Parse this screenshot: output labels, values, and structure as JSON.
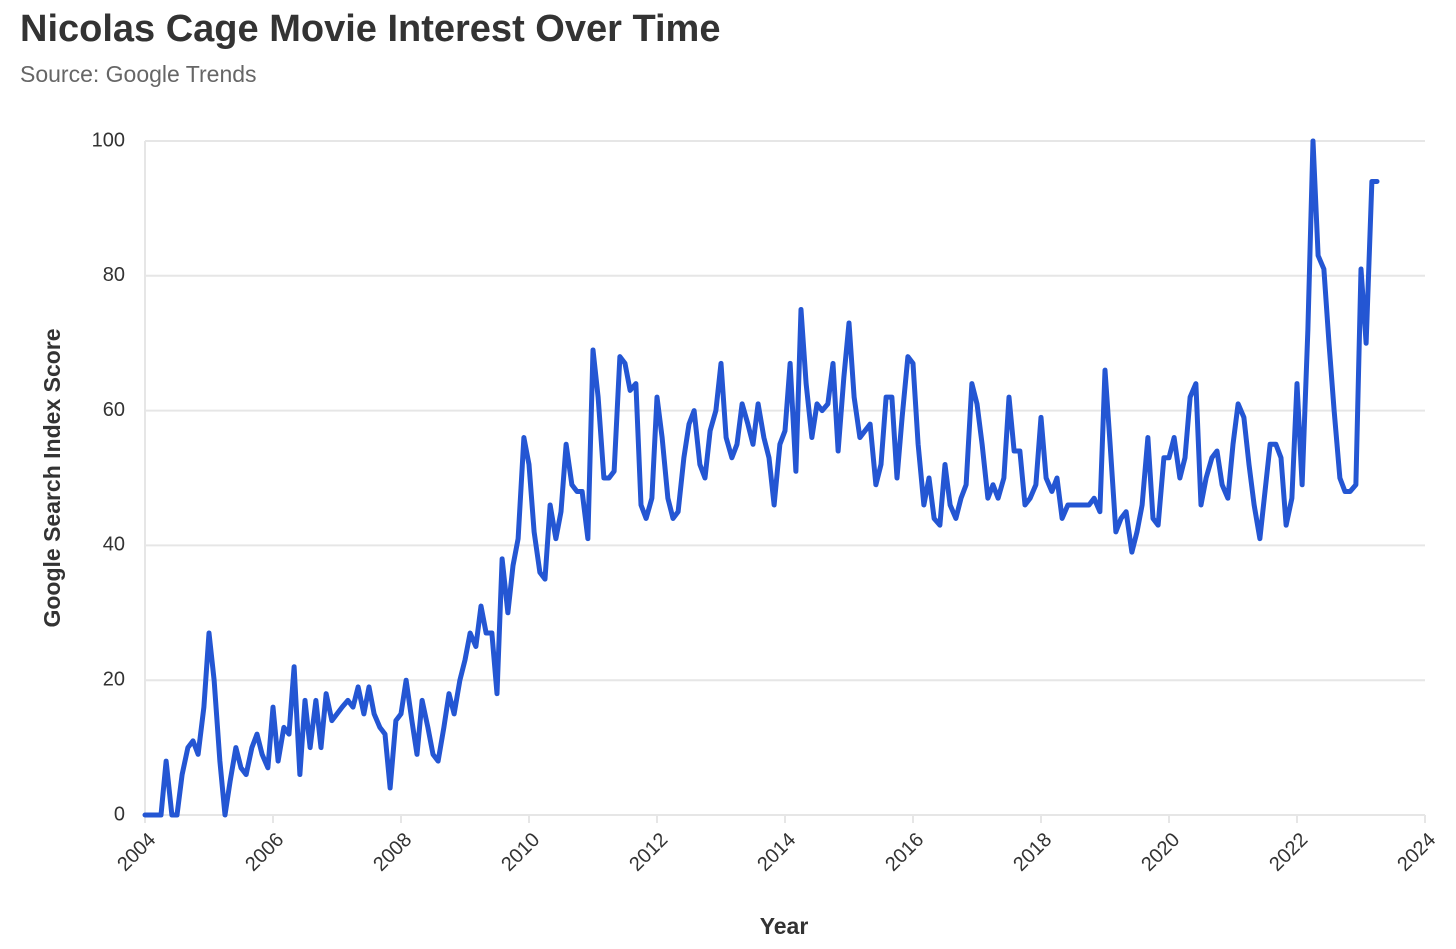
{
  "chart_data": {
    "type": "line",
    "title": "Nicolas Cage Movie Interest Over Time",
    "subtitle": "Source: Google Trends",
    "x_label": "Year",
    "y_label": "Google Search Index Score",
    "xlim": [
      2004,
      2024
    ],
    "xticks": [
      2004,
      2006,
      2008,
      2010,
      2012,
      2014,
      2016,
      2018,
      2020,
      2022,
      2024
    ],
    "ylim": [
      0,
      100
    ],
    "yticks": [
      0,
      20,
      40,
      60,
      80,
      100
    ],
    "grid": true,
    "x": [
      2004,
      2004.08,
      2004.17,
      2004.25,
      2004.33,
      2004.42,
      2004.5,
      2004.58,
      2004.67,
      2004.75,
      2004.83,
      2004.92,
      2005,
      2005.08,
      2005.17,
      2005.25,
      2005.33,
      2005.42,
      2005.5,
      2005.58,
      2005.67,
      2005.75,
      2005.83,
      2005.92,
      2006,
      2006.08,
      2006.17,
      2006.25,
      2006.33,
      2006.42,
      2006.5,
      2006.58,
      2006.67,
      2006.75,
      2006.83,
      2006.92,
      2007,
      2007.08,
      2007.17,
      2007.25,
      2007.33,
      2007.42,
      2007.5,
      2007.58,
      2007.67,
      2007.75,
      2007.83,
      2007.92,
      2008,
      2008.08,
      2008.17,
      2008.25,
      2008.33,
      2008.42,
      2008.5,
      2008.58,
      2008.67,
      2008.75,
      2008.83,
      2008.92,
      2009,
      2009.08,
      2009.17,
      2009.25,
      2009.33,
      2009.42,
      2009.5,
      2009.58,
      2009.67,
      2009.75,
      2009.83,
      2009.92,
      2010,
      2010.08,
      2010.17,
      2010.25,
      2010.33,
      2010.42,
      2010.5,
      2010.58,
      2010.67,
      2010.75,
      2010.83,
      2010.92,
      2011,
      2011.08,
      2011.17,
      2011.25,
      2011.33,
      2011.42,
      2011.5,
      2011.58,
      2011.67,
      2011.75,
      2011.83,
      2011.92,
      2012,
      2012.08,
      2012.17,
      2012.25,
      2012.33,
      2012.42,
      2012.5,
      2012.58,
      2012.67,
      2012.75,
      2012.83,
      2012.92,
      2013,
      2013.08,
      2013.17,
      2013.25,
      2013.33,
      2013.42,
      2013.5,
      2013.58,
      2013.67,
      2013.75,
      2013.83,
      2013.92,
      2014,
      2014.08,
      2014.17,
      2014.25,
      2014.33,
      2014.42,
      2014.5,
      2014.58,
      2014.67,
      2014.75,
      2014.83,
      2014.92,
      2015,
      2015.08,
      2015.17,
      2015.25,
      2015.33,
      2015.42,
      2015.5,
      2015.58,
      2015.67,
      2015.75,
      2015.83,
      2015.92,
      2016,
      2016.08,
      2016.17,
      2016.25,
      2016.33,
      2016.42,
      2016.5,
      2016.58,
      2016.67,
      2016.75,
      2016.83,
      2016.92,
      2017,
      2017.08,
      2017.17,
      2017.25,
      2017.33,
      2017.42,
      2017.5,
      2017.58,
      2017.67,
      2017.75,
      2017.83,
      2017.92,
      2018,
      2018.08,
      2018.17,
      2018.25,
      2018.33,
      2018.42,
      2018.5,
      2018.58,
      2018.67,
      2018.75,
      2018.83,
      2018.92,
      2019,
      2019.08,
      2019.17,
      2019.25,
      2019.33,
      2019.42,
      2019.5,
      2019.58,
      2019.67,
      2019.75,
      2019.83,
      2019.92,
      2020,
      2020.08,
      2020.17,
      2020.25,
      2020.33,
      2020.42,
      2020.5,
      2020.58,
      2020.67,
      2020.75,
      2020.83,
      2020.92,
      2021,
      2021.08,
      2021.17,
      2021.25,
      2021.33,
      2021.42,
      2021.5,
      2021.58,
      2021.67,
      2021.75,
      2021.83,
      2021.92,
      2022,
      2022.08,
      2022.17,
      2022.25,
      2022.33,
      2022.42,
      2022.5,
      2022.58,
      2022.67,
      2022.75,
      2022.83,
      2022.92,
      2023,
      2023.08,
      2023.17,
      2023.25
    ],
    "series": [
      {
        "name": "Nicolas Cage",
        "color": "#2456d3",
        "values": [
          0,
          0,
          0,
          0,
          8,
          0,
          0,
          6,
          10,
          11,
          9,
          16,
          27,
          20,
          8,
          0,
          5,
          10,
          7,
          6,
          10,
          12,
          9,
          7,
          16,
          8,
          13,
          12,
          22,
          6,
          17,
          10,
          17,
          10,
          18,
          14,
          15,
          16,
          17,
          16,
          19,
          15,
          19,
          15,
          13,
          12,
          4,
          14,
          15,
          20,
          14,
          9,
          17,
          13,
          9,
          8,
          13,
          18,
          15,
          20,
          23,
          27,
          25,
          31,
          27,
          27,
          18,
          38,
          30,
          37,
          41,
          56,
          52,
          42,
          36,
          35,
          46,
          41,
          45,
          55,
          49,
          48,
          48,
          41,
          69,
          62,
          50,
          50,
          51,
          68,
          67,
          63,
          64,
          46,
          44,
          47,
          62,
          56,
          47,
          44,
          45,
          53,
          58,
          60,
          52,
          50,
          57,
          60,
          67,
          56,
          53,
          55,
          61,
          58,
          55,
          61,
          56,
          53,
          46,
          55,
          57,
          67,
          51,
          75,
          64,
          56,
          61,
          60,
          61,
          67,
          54,
          65,
          73,
          62,
          56,
          57,
          58,
          49,
          52,
          62,
          62,
          50,
          59,
          68,
          67,
          55,
          46,
          50,
          44,
          43,
          52,
          46,
          44,
          47,
          49,
          64,
          61,
          55,
          47,
          49,
          47,
          50,
          62,
          54,
          54,
          46,
          47,
          49,
          59,
          50,
          48,
          50,
          44,
          46,
          46,
          46,
          46,
          46,
          47,
          45,
          66,
          55,
          42,
          44,
          45,
          39,
          42,
          46,
          56,
          44,
          43,
          53,
          53,
          56,
          50,
          53,
          62,
          64,
          46,
          50,
          53,
          54,
          49,
          47,
          55,
          61,
          59,
          52,
          46,
          41,
          48,
          55,
          55,
          53,
          43,
          47,
          64,
          49,
          72,
          100,
          83,
          81,
          70,
          60,
          50,
          48,
          48,
          49,
          81,
          70,
          94,
          94
        ]
      }
    ]
  }
}
